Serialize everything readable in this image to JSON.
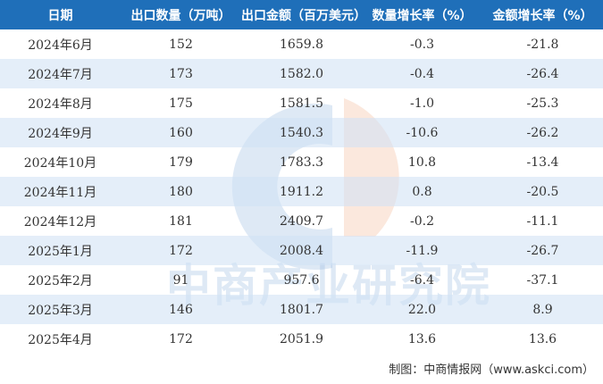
{
  "table": {
    "headers": [
      "日期",
      "出口数量（万吨）",
      "出口金额（百万美元）",
      "数量增长率（%）",
      "金额增长率（%）"
    ],
    "rows": [
      [
        "2024年6月",
        "152",
        "1659.8",
        "-0.3",
        "-21.8"
      ],
      [
        "2024年7月",
        "173",
        "1582.0",
        "-0.4",
        "-26.4"
      ],
      [
        "2024年8月",
        "175",
        "1581.5",
        "-1.0",
        "-25.3"
      ],
      [
        "2024年9月",
        "160",
        "1540.3",
        "-10.6",
        "-26.2"
      ],
      [
        "2024年10月",
        "179",
        "1783.3",
        "10.8",
        "-13.4"
      ],
      [
        "2024年11月",
        "180",
        "1911.2",
        "0.8",
        "-20.5"
      ],
      [
        "2024年12月",
        "181",
        "2409.7",
        "-0.2",
        "-11.1"
      ],
      [
        "2025年1月",
        "172",
        "2008.4",
        "-11.9",
        "-26.7"
      ],
      [
        "2025年2月",
        "91",
        "957.6",
        "-6.4",
        "-37.1"
      ],
      [
        "2025年3月",
        "146",
        "1801.7",
        "22.0",
        "8.9"
      ],
      [
        "2025年4月",
        "172",
        "2051.9",
        "13.6",
        "13.6"
      ]
    ]
  },
  "watermark": {
    "text": "中商产业研究院"
  },
  "footer": {
    "credit": "制图：中商情报网（www.askci.com）"
  },
  "colors": {
    "header_bg": "#1f6fb9",
    "stripe": "#dae8f7",
    "text": "#333333",
    "logo_blue": "#5b8fd0",
    "logo_orange": "#f0a77c"
  }
}
